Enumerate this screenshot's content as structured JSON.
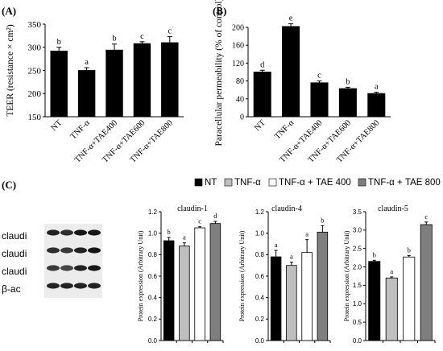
{
  "panel_labels": {
    "a": "(A)",
    "b": "(B)",
    "c": "(C)"
  },
  "legend": [
    {
      "label": "NT",
      "color": "#000000"
    },
    {
      "label": "TNF-α",
      "color": "#bfbfbf"
    },
    {
      "label": "TNF-α + TAE 400",
      "color": "#ffffff"
    },
    {
      "label": "TNF-α + TAE 800",
      "color": "#7f7f7f"
    }
  ],
  "blot": {
    "labels": [
      "claudi",
      "claudi",
      "claudi",
      "β-ac"
    ],
    "band_intensity": [
      [
        0.85,
        0.8,
        0.9,
        0.9
      ],
      [
        0.8,
        0.75,
        0.85,
        0.9
      ],
      [
        0.75,
        0.7,
        0.85,
        0.9
      ],
      [
        0.85,
        0.85,
        0.85,
        0.85
      ]
    ]
  },
  "chart_data": [
    {
      "type": "bar",
      "title": "",
      "xlabel": "",
      "ylabel": "TEER (resistance × cm²)",
      "ylim": [
        150,
        350
      ],
      "yticks": [
        150,
        200,
        250,
        300,
        350
      ],
      "categories": [
        "NT",
        "TNF-α",
        "TNF-α+TAE400",
        "TNF-α+TAE600",
        "TNF-α+TAE800"
      ],
      "values": [
        292,
        250,
        294,
        308,
        310
      ],
      "errors": [
        8,
        6,
        13,
        4,
        13
      ],
      "letters": [
        "b",
        "a",
        "b",
        "c",
        "c"
      ],
      "colors": [
        "#000000",
        "#000000",
        "#000000",
        "#000000",
        "#000000"
      ]
    },
    {
      "type": "bar",
      "title": "",
      "xlabel": "",
      "ylabel": "Paracellular permeability (% of control)",
      "ylim": [
        0,
        200
      ],
      "yticks": [
        0,
        40,
        80,
        120,
        160,
        200
      ],
      "categories": [
        "NT",
        "TNF-α",
        "TNF-α+TAE400",
        "TNF-α+TAE600",
        "TNF-α+TAE800"
      ],
      "values": [
        100,
        202,
        76,
        63,
        52
      ],
      "errors": [
        4,
        6,
        4,
        3,
        3
      ],
      "letters": [
        "d",
        "e",
        "c",
        "b",
        "a"
      ],
      "colors": [
        "#000000",
        "#000000",
        "#000000",
        "#000000",
        "#000000"
      ]
    },
    {
      "type": "bar",
      "title": "claudin-1",
      "xlabel": "",
      "ylabel": "Protein expression (Arbitrary Unit)",
      "ylim": [
        0,
        1.2
      ],
      "yticks": [
        0,
        0.2,
        0.4,
        0.6,
        0.8,
        1.0,
        1.2
      ],
      "ytick_labels": [
        "0.0",
        "0.2",
        "0.4",
        "0.6",
        "0.8",
        "1.0",
        "1.2"
      ],
      "categories": [
        "NT",
        "TNF-α",
        "TNF-α + TAE 400",
        "TNF-α + TAE 800"
      ],
      "values": [
        0.93,
        0.88,
        1.05,
        1.09
      ],
      "errors": [
        0.03,
        0.03,
        0.01,
        0.02
      ],
      "letters": [
        "b",
        "a",
        "c",
        "d"
      ],
      "colors": [
        "#000000",
        "#bfbfbf",
        "#ffffff",
        "#7f7f7f"
      ]
    },
    {
      "type": "bar",
      "title": "claudin-4",
      "xlabel": "",
      "ylabel": "Protein expression (Arbitrary Unit)",
      "ylim": [
        0,
        1.2
      ],
      "yticks": [
        0,
        0.2,
        0.4,
        0.6,
        0.8,
        1.0,
        1.2
      ],
      "ytick_labels": [
        "0.0",
        "0.2",
        "0.4",
        "0.6",
        "0.8",
        "1.0",
        "1.2"
      ],
      "categories": [
        "NT",
        "TNF-α",
        "TNF-α + TAE 400",
        "TNF-α + TAE 800"
      ],
      "values": [
        0.78,
        0.7,
        0.82,
        1.01
      ],
      "errors": [
        0.06,
        0.03,
        0.12,
        0.06
      ],
      "letters": [
        "a",
        "a",
        "a",
        "b"
      ],
      "colors": [
        "#000000",
        "#bfbfbf",
        "#ffffff",
        "#7f7f7f"
      ]
    },
    {
      "type": "bar",
      "title": "claudin-5",
      "xlabel": "",
      "ylabel": "Protein expression (Arbitrary Unit)",
      "ylim": [
        0,
        3.5
      ],
      "yticks": [
        0,
        0.5,
        1.0,
        1.5,
        2.0,
        2.5,
        3.0,
        3.5
      ],
      "ytick_labels": [
        "0.0",
        "0.5",
        "1.0",
        "1.5",
        "2.0",
        "2.5",
        "3.0",
        "3.5"
      ],
      "categories": [
        "NT",
        "TNF-α",
        "TNF-α + TAE 400",
        "TNF-α + TAE 800"
      ],
      "values": [
        2.15,
        1.7,
        2.27,
        3.15
      ],
      "errors": [
        0.03,
        0.03,
        0.04,
        0.07
      ],
      "letters": [
        "b",
        "a",
        "b",
        "c"
      ],
      "colors": [
        "#000000",
        "#bfbfbf",
        "#ffffff",
        "#7f7f7f"
      ]
    }
  ]
}
